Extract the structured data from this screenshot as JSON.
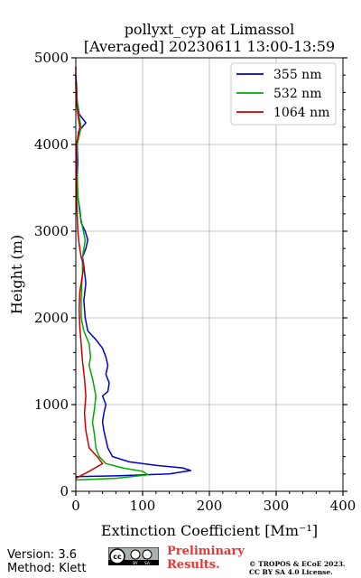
{
  "chart_data": {
    "type": "line",
    "title_line1": "pollyxt_cyp at Limassol",
    "title_line2": "[Averaged] 20230611 13:00-13:59",
    "xlabel": "Extinction Coefficient [Mm⁻¹]",
    "ylabel": "Height (m)",
    "xlim": [
      0,
      400
    ],
    "ylim": [
      0,
      5000
    ],
    "xticks": [
      "0",
      "100",
      "200",
      "300",
      "400"
    ],
    "yticks": [
      "0",
      "1000",
      "2000",
      "3000",
      "4000",
      "5000"
    ],
    "grid": true,
    "legend_position": "top-right",
    "series": [
      {
        "name": "355 nm",
        "color": "#0000cc",
        "points": [
          [
            0,
            170
          ],
          [
            60,
            178
          ],
          [
            140,
            200
          ],
          [
            172,
            240
          ],
          [
            160,
            270
          ],
          [
            120,
            300
          ],
          [
            80,
            340
          ],
          [
            55,
            400
          ],
          [
            48,
            500
          ],
          [
            45,
            600
          ],
          [
            42,
            700
          ],
          [
            40,
            800
          ],
          [
            42,
            900
          ],
          [
            45,
            1000
          ],
          [
            40,
            1100
          ],
          [
            48,
            1150
          ],
          [
            50,
            1250
          ],
          [
            45,
            1350
          ],
          [
            48,
            1450
          ],
          [
            45,
            1550
          ],
          [
            40,
            1650
          ],
          [
            30,
            1750
          ],
          [
            18,
            1850
          ],
          [
            14,
            2000
          ],
          [
            12,
            2200
          ],
          [
            15,
            2400
          ],
          [
            12,
            2600
          ],
          [
            10,
            2700
          ],
          [
            15,
            2800
          ],
          [
            18,
            2900
          ],
          [
            14,
            3000
          ],
          [
            8,
            3100
          ],
          [
            6,
            3250
          ],
          [
            3,
            3400
          ],
          [
            2,
            3600
          ],
          [
            3,
            3800
          ],
          [
            2,
            4000
          ],
          [
            4,
            4150
          ],
          [
            15,
            4250
          ],
          [
            5,
            4350
          ],
          [
            2,
            4500
          ],
          [
            1,
            4700
          ],
          [
            0,
            4800
          ]
        ]
      },
      {
        "name": "532 nm",
        "color": "#00aa00",
        "points": [
          [
            0,
            130
          ],
          [
            60,
            150
          ],
          [
            108,
            190
          ],
          [
            100,
            230
          ],
          [
            70,
            270
          ],
          [
            45,
            320
          ],
          [
            35,
            400
          ],
          [
            30,
            500
          ],
          [
            28,
            650
          ],
          [
            25,
            800
          ],
          [
            28,
            950
          ],
          [
            30,
            1100
          ],
          [
            25,
            1300
          ],
          [
            20,
            1450
          ],
          [
            22,
            1550
          ],
          [
            20,
            1700
          ],
          [
            12,
            1850
          ],
          [
            8,
            2000
          ],
          [
            8,
            2200
          ],
          [
            9,
            2400
          ],
          [
            10,
            2500
          ],
          [
            10,
            2700
          ],
          [
            14,
            2900
          ],
          [
            10,
            3050
          ],
          [
            6,
            3200
          ],
          [
            3,
            3400
          ],
          [
            2,
            3700
          ],
          [
            2,
            4000
          ],
          [
            8,
            4200
          ],
          [
            4,
            4350
          ],
          [
            2,
            4500
          ],
          [
            0,
            4700
          ]
        ]
      },
      {
        "name": "1064 nm",
        "color": "#cc0000",
        "points": [
          [
            0,
            150
          ],
          [
            20,
            230
          ],
          [
            40,
            320
          ],
          [
            32,
            400
          ],
          [
            20,
            500
          ],
          [
            15,
            700
          ],
          [
            13,
            900
          ],
          [
            15,
            1100
          ],
          [
            13,
            1300
          ],
          [
            10,
            1500
          ],
          [
            8,
            1700
          ],
          [
            6,
            1900
          ],
          [
            5,
            2100
          ],
          [
            6,
            2300
          ],
          [
            10,
            2500
          ],
          [
            12,
            2600
          ],
          [
            8,
            2700
          ],
          [
            5,
            2850
          ],
          [
            3,
            3000
          ],
          [
            2,
            3200
          ],
          [
            1,
            3400
          ],
          [
            1,
            3800
          ],
          [
            1,
            4000
          ],
          [
            6,
            4200
          ],
          [
            3,
            4350
          ],
          [
            1,
            4500
          ],
          [
            0,
            4700
          ],
          [
            0,
            4900
          ]
        ]
      }
    ]
  },
  "footer": {
    "version": "Version: 3.6",
    "method": "Method: Klett",
    "cc_icon": "cc-by-sa-badge",
    "preliminary_line1": "Preliminary",
    "preliminary_line2": "Results.",
    "license_line1": "© TROPOS & ECoE 2023.",
    "license_line2": "CC BY SA 4.0 License."
  }
}
